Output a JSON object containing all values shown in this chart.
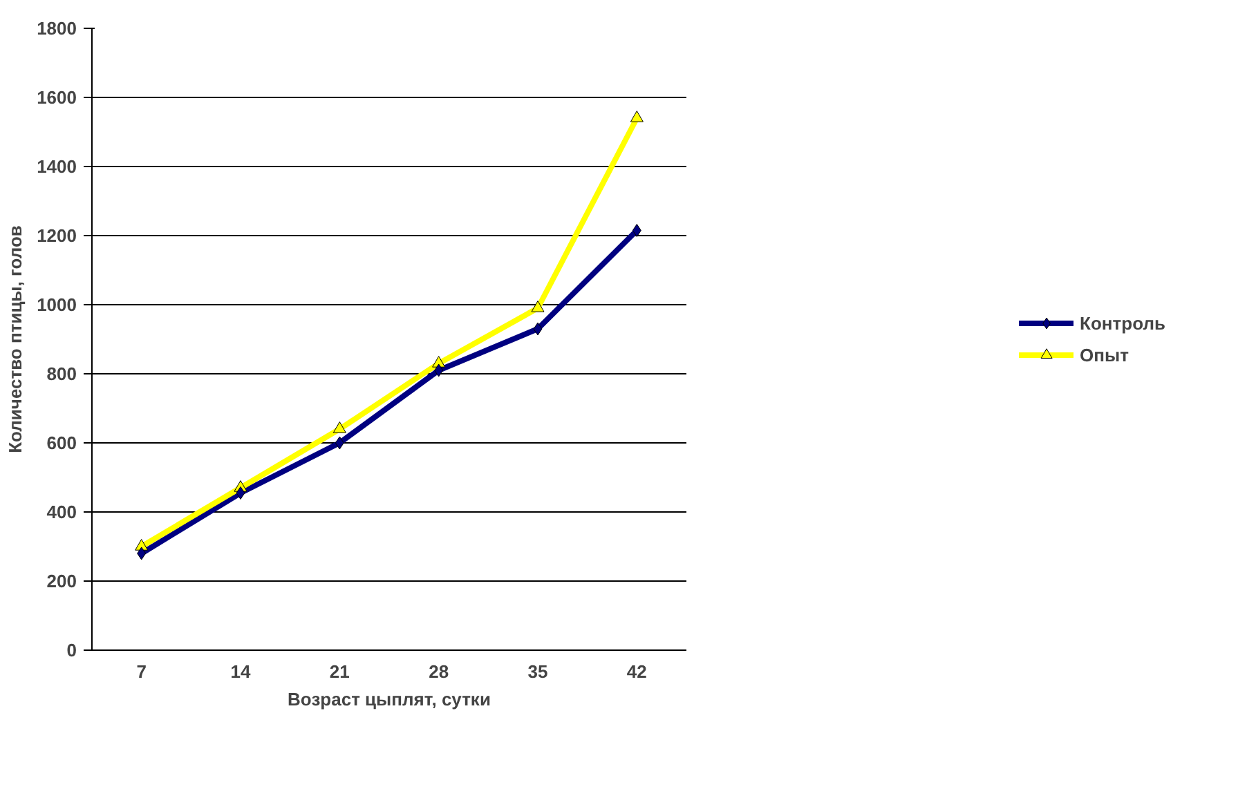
{
  "chart_data": {
    "type": "line",
    "xlabel": "Возраст цыплят, сутки",
    "ylabel": "Количество птицы, голов",
    "categories": [
      "7",
      "14",
      "21",
      "28",
      "35",
      "42"
    ],
    "series": [
      {
        "name": "Контроль",
        "color": "#000080",
        "marker": "diamond",
        "values": [
          280,
          455,
          600,
          810,
          930,
          1215
        ]
      },
      {
        "name": "Опыт",
        "color": "#ffff00",
        "marker": "triangle",
        "values": [
          300,
          470,
          640,
          830,
          990,
          1540
        ]
      }
    ],
    "ylim": [
      0,
      1800
    ],
    "yticks": [
      0,
      200,
      400,
      600,
      800,
      1000,
      1200,
      1400,
      1600,
      1800
    ],
    "grid": "y",
    "legend": "right"
  }
}
